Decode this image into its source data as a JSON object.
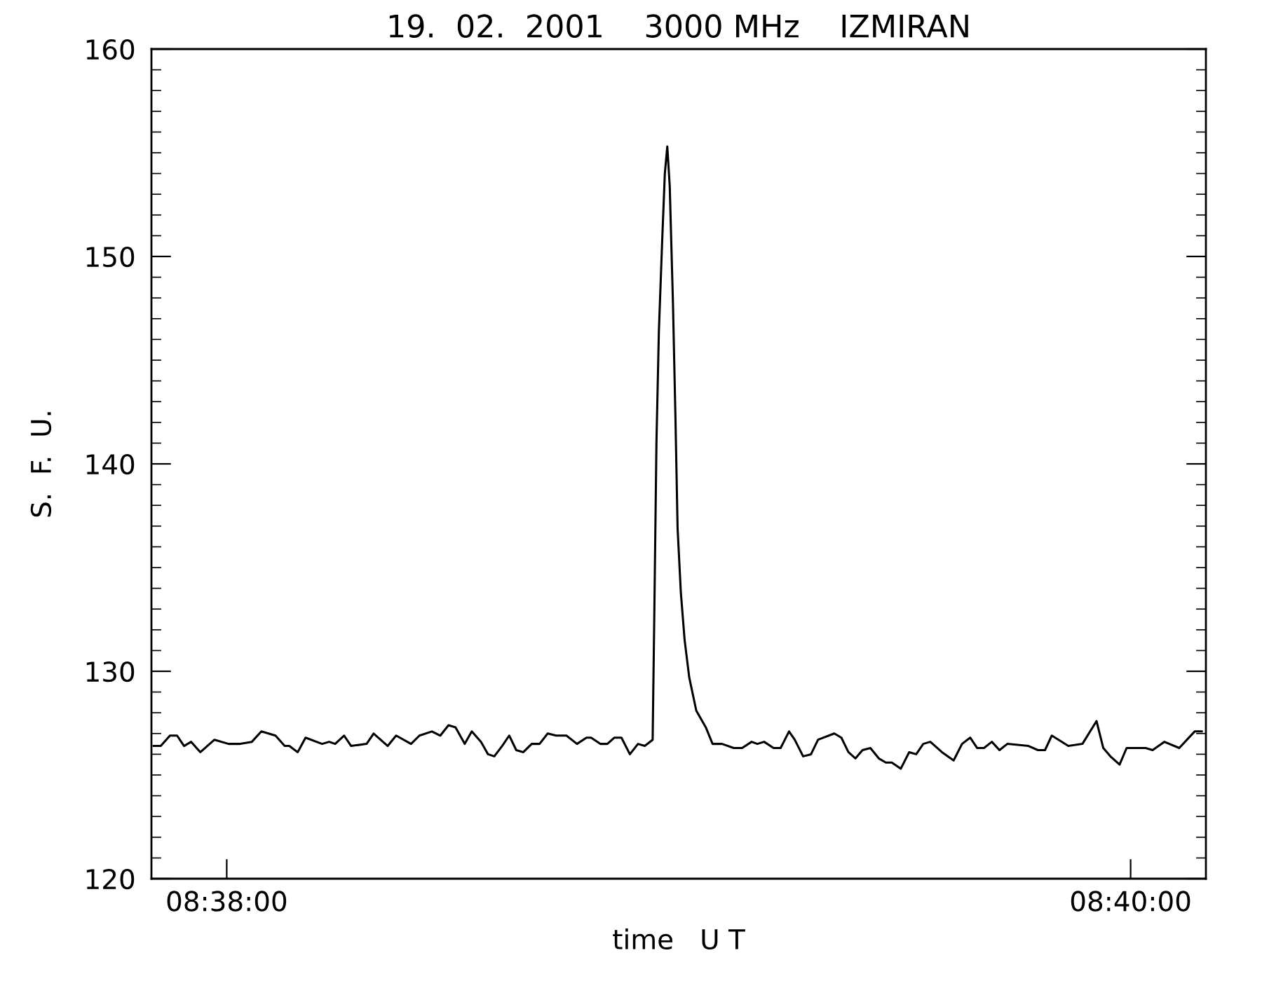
{
  "chart_data": {
    "type": "line",
    "title": "19.  02.  2001    3000 MHz    IZMIRAN",
    "xlabel": "time   U T",
    "ylabel": "S.  F.  U.",
    "xlim": [
      8.630556,
      8.669444
    ],
    "xticks": [
      {
        "value": 8.633333,
        "label": "08:38:00"
      },
      {
        "value": 8.666667,
        "label": "08:40:00"
      }
    ],
    "ylim": [
      120,
      160
    ],
    "yticks": [
      120,
      130,
      140,
      150,
      160
    ],
    "grid": false,
    "legend": false,
    "marker": "none",
    "line_style": "solid",
    "series": [
      {
        "color": "#000000",
        "x": [
          8.63064,
          8.6309,
          8.63124,
          8.6315,
          8.63176,
          8.63202,
          8.63236,
          8.63288,
          8.6334,
          8.63383,
          8.63426,
          8.63461,
          8.63513,
          8.63547,
          8.63564,
          8.63595,
          8.63624,
          8.63685,
          8.63711,
          8.63733,
          8.63766,
          8.63792,
          8.63849,
          8.63875,
          8.63927,
          8.63958,
          8.64013,
          8.64044,
          8.6409,
          8.64121,
          8.64151,
          8.64177,
          8.64211,
          8.64237,
          8.64271,
          8.64297,
          8.6432,
          8.64349,
          8.64375,
          8.64401,
          8.64427,
          8.64458,
          8.64487,
          8.64517,
          8.64548,
          8.64586,
          8.64625,
          8.6466,
          8.64677,
          8.64711,
          8.64737,
          8.64763,
          8.64789,
          8.6482,
          8.6485,
          8.64875,
          8.64904,
          8.6491,
          8.64918,
          8.64927,
          8.64939,
          8.64949,
          8.64958,
          8.64967,
          8.64979,
          8.64988,
          8.64996,
          8.65008,
          8.65022,
          8.65039,
          8.65065,
          8.651,
          8.65125,
          8.6516,
          8.65203,
          8.65234,
          8.65269,
          8.6529,
          8.65315,
          8.6535,
          8.65376,
          8.65407,
          8.65428,
          8.65459,
          8.65488,
          8.65514,
          8.65574,
          8.656,
          8.65626,
          8.65652,
          8.65678,
          8.65707,
          8.65738,
          8.65764,
          8.65786,
          8.65819,
          8.6585,
          8.65876,
          8.65902,
          8.65928,
          8.65971,
          8.66014,
          8.66045,
          8.66075,
          8.66101,
          8.66126,
          8.66155,
          8.66183,
          8.66212,
          8.6629,
          8.66325,
          8.66351,
          8.66376,
          8.66437,
          8.66489,
          8.66541,
          8.66566,
          8.66592,
          8.66626,
          8.66652,
          8.66722,
          8.66748,
          8.66791,
          8.66846,
          8.66903,
          8.66929
        ],
        "values": [
          126.4,
          126.4,
          126.9,
          126.9,
          126.4,
          126.6,
          126.1,
          126.7,
          126.5,
          126.5,
          126.6,
          127.1,
          126.9,
          126.4,
          126.4,
          126.1,
          126.8,
          126.5,
          126.6,
          126.5,
          126.9,
          126.4,
          126.5,
          127.0,
          126.4,
          126.9,
          126.5,
          126.9,
          127.1,
          126.9,
          127.4,
          127.3,
          126.5,
          127.1,
          126.6,
          126.0,
          125.9,
          126.4,
          126.9,
          126.2,
          126.1,
          126.5,
          126.5,
          127.0,
          126.9,
          126.9,
          126.5,
          126.8,
          126.8,
          126.5,
          126.5,
          126.8,
          126.8,
          126.0,
          126.5,
          126.4,
          126.7,
          132.6,
          141.0,
          146.4,
          150.7,
          154.0,
          155.3,
          153.4,
          147.7,
          142.3,
          136.9,
          133.8,
          131.5,
          129.7,
          128.1,
          127.3,
          126.5,
          126.5,
          126.3,
          126.3,
          126.6,
          126.5,
          126.6,
          126.3,
          126.3,
          127.1,
          126.7,
          125.9,
          126.0,
          126.7,
          127.0,
          126.8,
          126.1,
          125.8,
          126.2,
          126.3,
          125.8,
          125.6,
          125.6,
          125.3,
          126.1,
          126.0,
          126.5,
          126.6,
          126.1,
          125.7,
          126.5,
          126.8,
          126.3,
          126.3,
          126.6,
          126.2,
          126.5,
          126.4,
          126.2,
          126.2,
          126.9,
          126.4,
          126.5,
          127.6,
          126.3,
          125.9,
          125.5,
          126.3,
          126.3,
          126.2,
          126.6,
          126.3,
          127.1,
          127.1
        ]
      }
    ]
  }
}
